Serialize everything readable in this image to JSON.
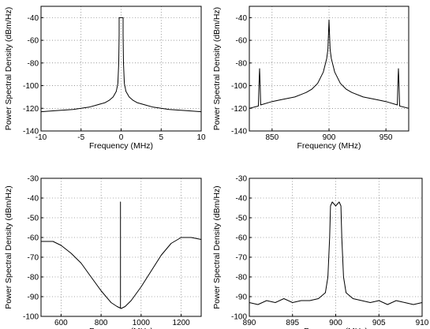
{
  "chart_data": [
    {
      "type": "line",
      "xlabel": "Frequency (MHz)",
      "ylabel": "Power Spectral Density (dBm/Hz)",
      "xlim": [
        -10,
        10
      ],
      "ylim": [
        -140,
        -30
      ],
      "xticks": [
        -10,
        -5,
        0,
        5,
        10
      ],
      "yticks": [
        -140,
        -120,
        -100,
        -80,
        -60,
        -40
      ],
      "grid": true,
      "series": [
        {
          "x": [
            -10,
            -8,
            -6,
            -4,
            -3,
            -2,
            -1.5,
            -1,
            -0.6,
            -0.4,
            -0.3,
            -0.25,
            -0.25,
            0,
            0.25,
            0.25,
            0.3,
            0.4,
            0.6,
            1,
            1.5,
            2,
            3,
            4,
            6,
            8,
            10
          ],
          "y": [
            -123,
            -122,
            -121,
            -119,
            -117,
            -115,
            -113,
            -110,
            -105,
            -98,
            -80,
            -55,
            -40,
            -40,
            -40,
            -55,
            -80,
            -98,
            -105,
            -110,
            -113,
            -115,
            -117,
            -119,
            -121,
            -122,
            -123
          ]
        }
      ]
    },
    {
      "type": "line",
      "xlabel": "Frequency (MHz)",
      "ylabel": "Power Spectral Density (dBm/Hz)",
      "xlim": [
        830,
        970
      ],
      "ylim": [
        -140,
        -30
      ],
      "xticks": [
        850,
        900,
        950
      ],
      "yticks": [
        -140,
        -120,
        -100,
        -80,
        -60,
        -40
      ],
      "grid": true,
      "series": [
        {
          "x": [
            830,
            838,
            838.5,
            839,
            839.5,
            840,
            850,
            860,
            870,
            880,
            885,
            890,
            895,
            898,
            899,
            899.5,
            900,
            900.5,
            901,
            902,
            905,
            910,
            915,
            920,
            930,
            940,
            950,
            960,
            960.5,
            961,
            961.5,
            962,
            970
          ],
          "y": [
            -120,
            -118,
            -98,
            -85,
            -98,
            -117,
            -114,
            -112,
            -110,
            -106,
            -103,
            -98,
            -88,
            -76,
            -68,
            -55,
            -42,
            -55,
            -68,
            -76,
            -88,
            -98,
            -103,
            -106,
            -110,
            -112,
            -114,
            -117,
            -98,
            -85,
            -98,
            -118,
            -120
          ]
        }
      ]
    },
    {
      "type": "line",
      "xlabel": "Frequency (MHz)",
      "ylabel": "Power Spectral Density (dBm/Hz)",
      "xlim": [
        500,
        1300
      ],
      "ylim": [
        -100,
        -30
      ],
      "xticks": [
        600,
        800,
        1000,
        1200
      ],
      "yticks": [
        -100,
        -90,
        -80,
        -70,
        -60,
        -50,
        -40,
        -30
      ],
      "grid": true,
      "series": [
        {
          "x": [
            500,
            560,
            600,
            650,
            700,
            750,
            800,
            850,
            880,
            900,
            920,
            950,
            1000,
            1050,
            1100,
            1150,
            1200,
            1250,
            1300
          ],
          "y": [
            -62,
            -62,
            -64,
            -68,
            -73,
            -80,
            -87,
            -93,
            -95,
            -96,
            -95,
            -92,
            -85,
            -77,
            -69,
            -63,
            -60,
            -60,
            -61
          ]
        },
        {
          "x": [
            897,
            897,
            897
          ],
          "y": [
            -96,
            -42,
            -96
          ]
        }
      ]
    },
    {
      "type": "line",
      "xlabel": "Frequency (MHz)",
      "ylabel": "Power Spectral Density (dBm/Hz)",
      "xlim": [
        890,
        910
      ],
      "ylim": [
        -100,
        -30
      ],
      "xticks": [
        890,
        895,
        900,
        905,
        910
      ],
      "yticks": [
        -100,
        -90,
        -80,
        -70,
        -60,
        -50,
        -40,
        -30
      ],
      "grid": true,
      "series": [
        {
          "x": [
            890,
            891,
            892,
            893,
            894,
            895,
            896,
            897,
            898,
            898.8,
            899.1,
            899.3,
            899.4,
            899.6,
            900,
            900.4,
            900.6,
            900.7,
            900.9,
            901.2,
            902,
            903,
            904,
            905,
            906,
            907,
            908,
            909,
            910
          ],
          "y": [
            -93,
            -94,
            -92,
            -93,
            -91,
            -93,
            -92,
            -92,
            -91,
            -88,
            -80,
            -60,
            -44,
            -42,
            -44,
            -42,
            -44,
            -60,
            -80,
            -88,
            -91,
            -92,
            -93,
            -92,
            -94,
            -92,
            -93,
            -94,
            -93
          ]
        }
      ]
    }
  ]
}
